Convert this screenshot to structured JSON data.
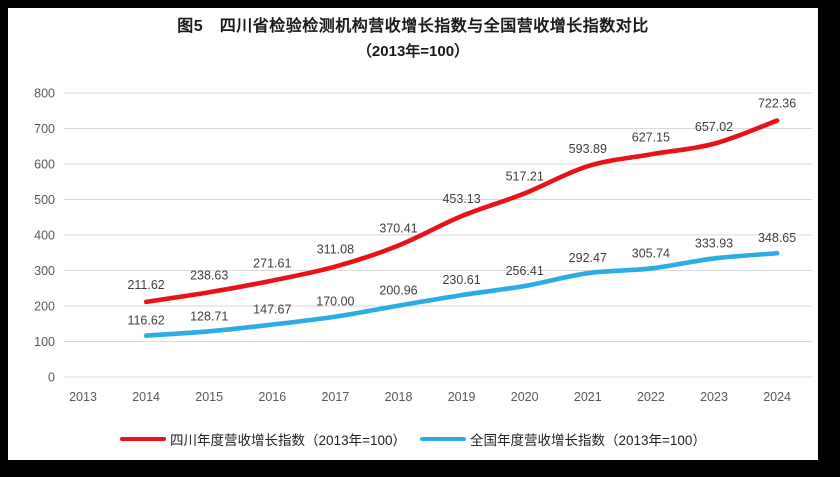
{
  "title": {
    "line1": "图5　四川省检验检测机构营收增长指数与全国营收增长指数对比",
    "line2": "（2013年=100）"
  },
  "colors": {
    "sichuan_line": "#e8131a",
    "national_line": "#2bace2",
    "grid": "#d9d9d9",
    "tick_text": "#595959",
    "data_label_text": "#3f3f3f",
    "frame": "#000000",
    "background": "#ffffff"
  },
  "legend": [
    {
      "label": "四川年度营收增长指数（2013年=100）",
      "color_key": "sichuan_line"
    },
    {
      "label": "全国年度营收增长指数（2013年=100）",
      "color_key": "national_line"
    }
  ],
  "chart_data": {
    "type": "line",
    "title": "图5 四川省检验检测机构营收增长指数与全国营收增长指数对比（2013年=100）",
    "categories": [
      "2013",
      "2014",
      "2015",
      "2016",
      "2017",
      "2018",
      "2019",
      "2020",
      "2021",
      "2022",
      "2023",
      "2024"
    ],
    "series": [
      {
        "name": "四川年度营收增长指数（2013年=100）",
        "color_key": "sichuan_line",
        "start_category": "2014",
        "values": [
          211.62,
          238.63,
          271.61,
          311.08,
          370.41,
          453.13,
          517.21,
          593.89,
          627.15,
          657.02,
          722.36
        ]
      },
      {
        "name": "全国年度营收增长指数（2013年=100）",
        "color_key": "national_line",
        "start_category": "2014",
        "values": [
          116.62,
          128.71,
          147.67,
          170.0,
          200.96,
          230.61,
          256.41,
          292.47,
          305.74,
          333.93,
          348.65
        ]
      }
    ],
    "xlabel": "",
    "ylabel": "",
    "ylim": [
      0,
      800
    ],
    "ytick_step": 100,
    "grid": true,
    "smoothed_lines": true,
    "data_labels": true,
    "legend_position": "bottom"
  }
}
